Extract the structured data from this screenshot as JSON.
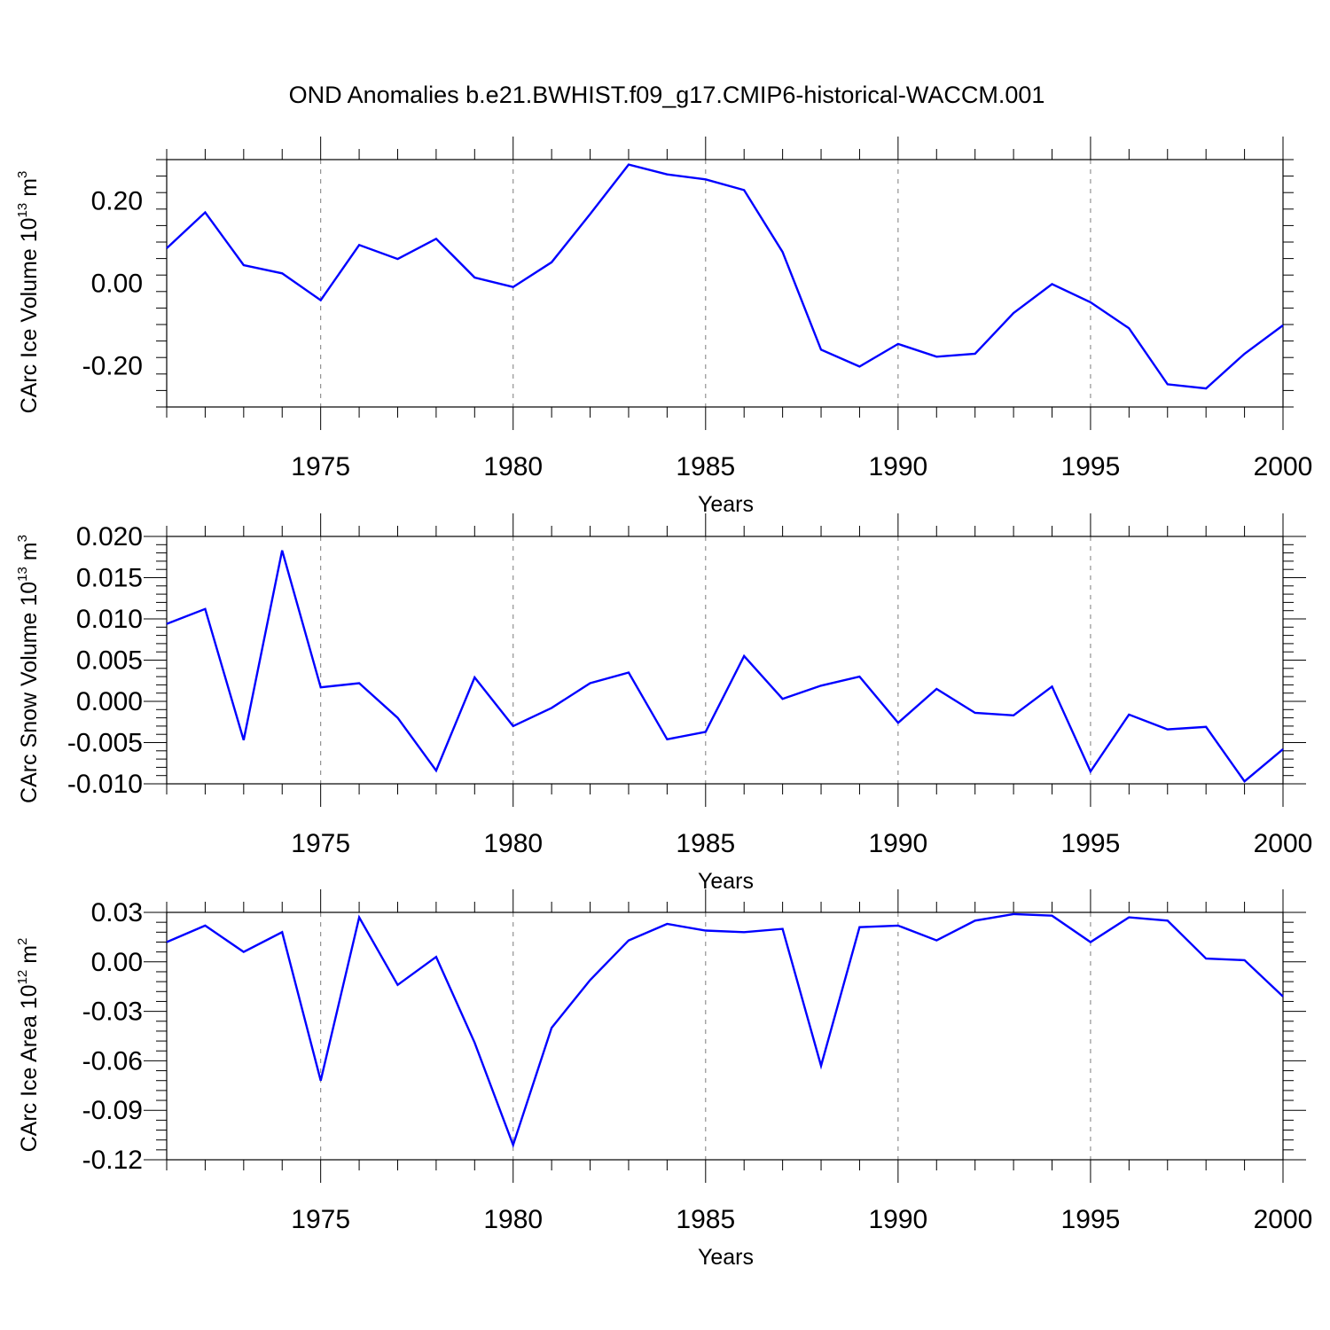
{
  "title": "OND Anomalies b.e21.BWHIST.f09_g17.CMIP6-historical-WACCM.001",
  "colors": {
    "line": "#0000ff",
    "axes": "#000000",
    "reference": "#888888"
  },
  "chart_data": [
    {
      "type": "line",
      "ylabel_main": "CArc Ice Volume 10",
      "ylabel_exp": "13",
      "ylabel_unit": " m",
      "ylabel_unit_exp": "3",
      "xlabel": "Years",
      "xlim": [
        1971,
        2000
      ],
      "ylim": [
        -0.3,
        0.3
      ],
      "yticks": [
        -0.2,
        0.0,
        0.2
      ],
      "ytick_labels": [
        "-0.20",
        "0.00",
        "0.20"
      ],
      "xticks": [
        1975,
        1980,
        1985,
        1990,
        1995,
        2000
      ],
      "xtick_labels": [
        "1975",
        "1980",
        "1985",
        "1990",
        "1995",
        "2000"
      ],
      "x": [
        1971,
        1972,
        1973,
        1974,
        1975,
        1976,
        1977,
        1978,
        1979,
        1980,
        1981,
        1982,
        1983,
        1984,
        1985,
        1986,
        1987,
        1988,
        1989,
        1990,
        1991,
        1992,
        1993,
        1994,
        1995,
        1996,
        1997,
        1998,
        1999,
        2000
      ],
      "values": [
        0.085,
        0.172,
        0.044,
        0.024,
        -0.041,
        0.093,
        0.059,
        0.108,
        0.014,
        -0.009,
        0.051,
        0.168,
        0.288,
        0.264,
        0.252,
        0.226,
        0.076,
        -0.161,
        -0.202,
        -0.147,
        -0.178,
        -0.171,
        -0.072,
        -0.002,
        -0.046,
        -0.109,
        -0.245,
        -0.255,
        -0.171,
        -0.102
      ]
    },
    {
      "type": "line",
      "ylabel_main": "CArc Snow Volume 10",
      "ylabel_exp": "13",
      "ylabel_unit": " m",
      "ylabel_unit_exp": "3",
      "xlabel": "Years",
      "xlim": [
        1971,
        2000
      ],
      "ylim": [
        -0.01,
        0.02
      ],
      "yticks": [
        -0.01,
        -0.005,
        0.0,
        0.005,
        0.01,
        0.015,
        0.02
      ],
      "ytick_labels": [
        "-0.010",
        "-0.005",
        "0.000",
        "0.005",
        "0.010",
        "0.015",
        "0.020"
      ],
      "xticks": [
        1975,
        1980,
        1985,
        1990,
        1995,
        2000
      ],
      "xtick_labels": [
        "1975",
        "1980",
        "1985",
        "1990",
        "1995",
        "2000"
      ],
      "x": [
        1971,
        1972,
        1973,
        1974,
        1975,
        1976,
        1977,
        1978,
        1979,
        1980,
        1981,
        1982,
        1983,
        1984,
        1985,
        1986,
        1987,
        1988,
        1989,
        1990,
        1991,
        1992,
        1993,
        1994,
        1995,
        1996,
        1997,
        1998,
        1999,
        2000
      ],
      "values": [
        0.0094,
        0.0112,
        -0.0047,
        0.0183,
        0.0017,
        0.0022,
        -0.002,
        -0.0084,
        0.0029,
        -0.003,
        -0.0008,
        0.0022,
        0.0035,
        -0.0046,
        -0.0037,
        0.0055,
        0.0003,
        0.0019,
        0.003,
        -0.0026,
        0.0015,
        -0.0014,
        -0.0017,
        0.0018,
        -0.0085,
        -0.0016,
        -0.0034,
        -0.0031,
        -0.0097,
        -0.0058
      ]
    },
    {
      "type": "line",
      "ylabel_main": "CArc Ice Area 10",
      "ylabel_exp": "12",
      "ylabel_unit": " m",
      "ylabel_unit_exp": "2",
      "xlabel": "Years",
      "xlim": [
        1971,
        2000
      ],
      "ylim": [
        -0.12,
        0.03
      ],
      "yticks": [
        -0.12,
        -0.09,
        -0.06,
        -0.03,
        0.0,
        0.03
      ],
      "ytick_labels": [
        "-0.12",
        "-0.09",
        "-0.06",
        "-0.03",
        "0.00",
        "0.03"
      ],
      "xticks": [
        1975,
        1980,
        1985,
        1990,
        1995,
        2000
      ],
      "xtick_labels": [
        "1975",
        "1980",
        "1985",
        "1990",
        "1995",
        "2000"
      ],
      "x": [
        1971,
        1972,
        1973,
        1974,
        1975,
        1976,
        1977,
        1978,
        1979,
        1980,
        1981,
        1982,
        1983,
        1984,
        1985,
        1986,
        1987,
        1988,
        1989,
        1990,
        1991,
        1992,
        1993,
        1994,
        1995,
        1996,
        1997,
        1998,
        1999,
        2000
      ],
      "values": [
        0.012,
        0.022,
        0.006,
        0.018,
        -0.072,
        0.027,
        -0.014,
        0.003,
        -0.049,
        -0.111,
        -0.04,
        -0.011,
        0.013,
        0.023,
        0.019,
        0.018,
        0.02,
        -0.063,
        0.021,
        0.022,
        0.013,
        0.025,
        0.029,
        0.028,
        0.012,
        0.027,
        0.025,
        0.002,
        0.001,
        -0.021
      ]
    }
  ]
}
